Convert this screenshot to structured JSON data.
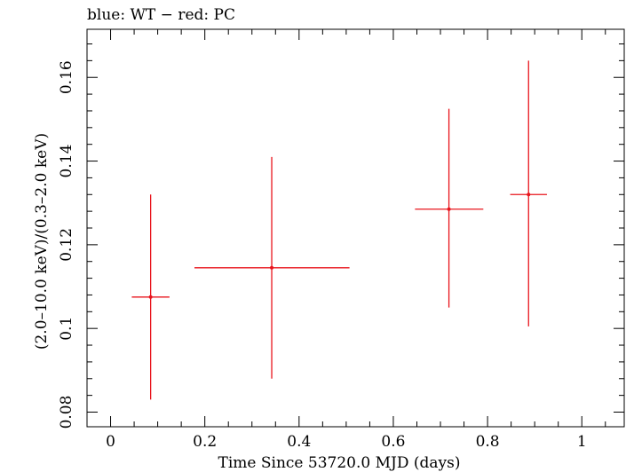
{
  "chart_data": {
    "type": "scatter",
    "title": "blue: WT − red: PC",
    "xlabel": "Time Since 53720.0 MJD (days)",
    "ylabel": "(2.0–10.0 keV)/(0.3–2.0 keV)",
    "xlim": [
      -0.05,
      1.09
    ],
    "ylim": [
      0.0765,
      0.1715
    ],
    "x_ticks": [
      0,
      0.2,
      0.4,
      0.6,
      0.8,
      1
    ],
    "x_tick_labels": [
      "0",
      "0.2",
      "0.4",
      "0.6",
      "0.8",
      "1"
    ],
    "y_ticks": [
      0.08,
      0.1,
      0.12,
      0.14,
      0.16
    ],
    "y_tick_labels": [
      "0.08",
      "0.1",
      "0.12",
      "0.14",
      "0.16"
    ],
    "grid": false,
    "series": [
      {
        "name": "PC",
        "color": "#e8141c",
        "points": [
          {
            "x": 0.085,
            "y": 0.1075,
            "x_lo": 0.045,
            "x_hi": 0.125,
            "y_lo": 0.083,
            "y_hi": 0.132
          },
          {
            "x": 0.342,
            "y": 0.1145,
            "x_lo": 0.178,
            "x_hi": 0.507,
            "y_lo": 0.088,
            "y_hi": 0.141
          },
          {
            "x": 0.718,
            "y": 0.1285,
            "x_lo": 0.646,
            "x_hi": 0.791,
            "y_lo": 0.105,
            "y_hi": 0.1525
          },
          {
            "x": 0.887,
            "y": 0.132,
            "x_lo": 0.848,
            "x_hi": 0.926,
            "y_lo": 0.1005,
            "y_hi": 0.164
          }
        ]
      }
    ]
  }
}
